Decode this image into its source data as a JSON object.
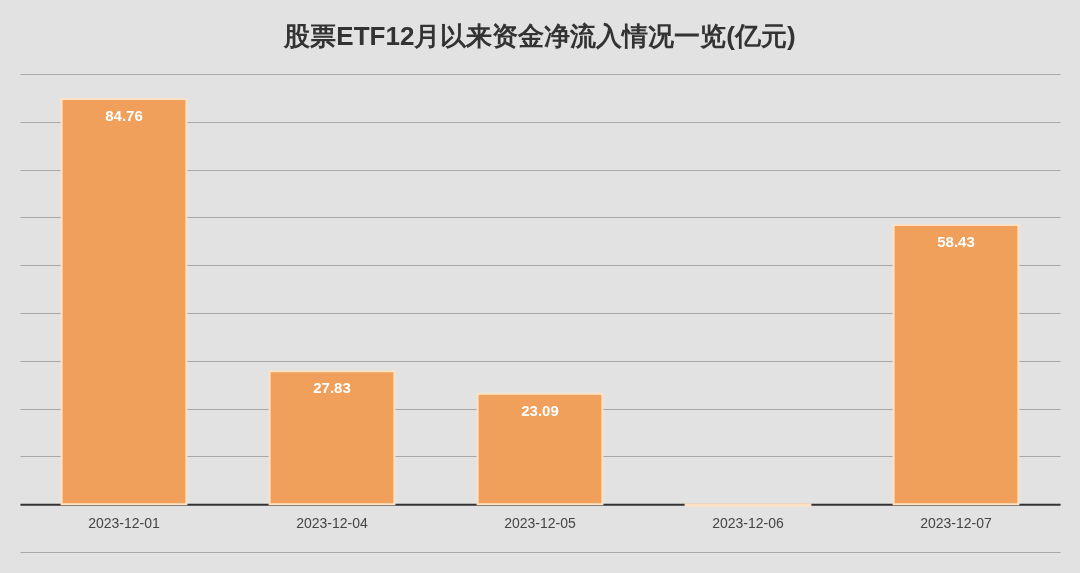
{
  "chart_data": {
    "type": "bar",
    "title": "股票ETF12月以来资金净流入情况一览(亿元)",
    "categories": [
      "2023-12-01",
      "2023-12-04",
      "2023-12-05",
      "2023-12-06",
      "2023-12-07"
    ],
    "values": [
      84.76,
      27.83,
      23.09,
      -0.3,
      58.43
    ],
    "value_labels": [
      "84.76",
      "27.83",
      "23.09",
      null,
      "58.43"
    ],
    "color": "#f0a05a",
    "ylim": [
      -10,
      90
    ],
    "yticks": [
      {
        "value": -10,
        "label": null
      },
      {
        "value": 0,
        "label": null
      },
      {
        "value": 10,
        "label": null
      },
      {
        "value": 20,
        "label": null
      },
      {
        "value": 30,
        "label": null
      },
      {
        "value": 40,
        "label": null
      },
      {
        "value": 50,
        "label": null
      },
      {
        "value": 60,
        "label": null
      },
      {
        "value": 70,
        "label": null
      },
      {
        "value": 80,
        "label": null
      },
      {
        "value": 90,
        "label": null
      }
    ],
    "grid": "y",
    "tick_labels": "x"
  }
}
